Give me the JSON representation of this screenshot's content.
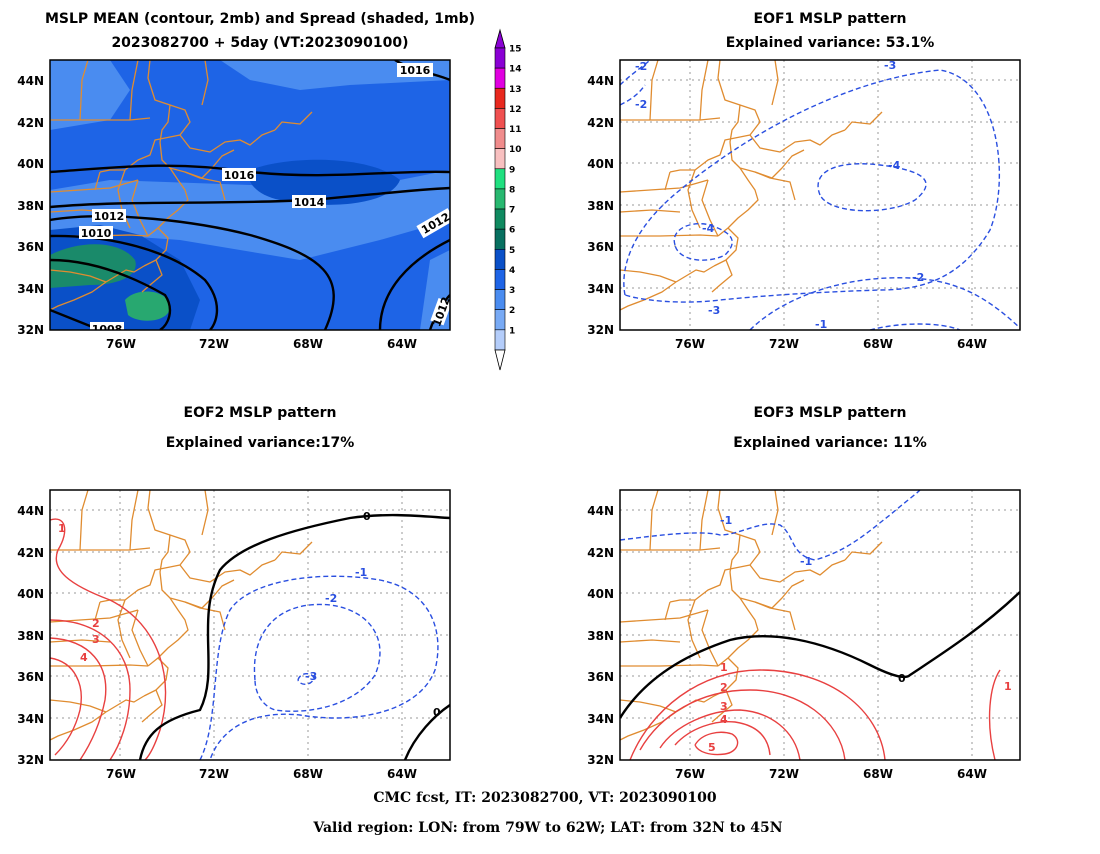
{
  "panel1": {
    "title_line1": "MSLP MEAN (contour, 2mb) and Spread (shaded, 1mb)",
    "title_line2": "2023082700 + 5day (VT:2023090100)",
    "contour_labels": [
      "1016",
      "1016",
      "1014",
      "1012",
      "1010",
      "1008",
      "1012",
      "1012"
    ]
  },
  "panel2": {
    "title_line1": "EOF1 MSLP pattern",
    "title_line2": "Explained variance: 53.1%",
    "contour_labels": [
      "-2",
      "-2",
      "-3",
      "-4",
      "-4",
      "-3",
      "-2",
      "-1"
    ]
  },
  "panel3": {
    "title_line1": "EOF2 MSLP pattern",
    "title_line2": "Explained variance:17%",
    "contour_labels": [
      "1",
      "2",
      "3",
      "4",
      "0",
      "0",
      "-1",
      "-2",
      "-3"
    ]
  },
  "panel4": {
    "title_line1": "EOF3 MSLP pattern",
    "title_line2": "Explained variance: 11%",
    "contour_labels": [
      "-1",
      "-1",
      "0",
      "1",
      "2",
      "3",
      "4",
      "5",
      "1"
    ]
  },
  "axes": {
    "lat_ticks": [
      "44N",
      "42N",
      "40N",
      "38N",
      "36N",
      "34N",
      "32N"
    ],
    "lon_ticks": [
      "76W",
      "72W",
      "68W",
      "64W"
    ]
  },
  "colorbar": {
    "labels": [
      "15",
      "14",
      "13",
      "12",
      "11",
      "10",
      "9",
      "8",
      "7",
      "6",
      "5",
      "4",
      "3",
      "2",
      "1"
    ],
    "colors": [
      "#8a00d4",
      "#e000e0",
      "#e8281e",
      "#f05050",
      "#f08c8c",
      "#f8c0c0",
      "#20e080",
      "#28b870",
      "#108a60",
      "#087060",
      "#0a50c8",
      "#1e64e6",
      "#4a8cf0",
      "#78aaf5",
      "#b4cdfa"
    ]
  },
  "footer": {
    "line1": "CMC fcst, IT: 2023082700, VT: 2023090100",
    "line2": "Valid region: LON: from 79W to 62W; LAT: from 32N to 45N"
  },
  "colors": {
    "coast": "#e08c30",
    "negative_contour": "#2a4fe0",
    "positive_contour": "#e84040",
    "zero_contour": "#000000",
    "grid": "#9a9a9a"
  }
}
